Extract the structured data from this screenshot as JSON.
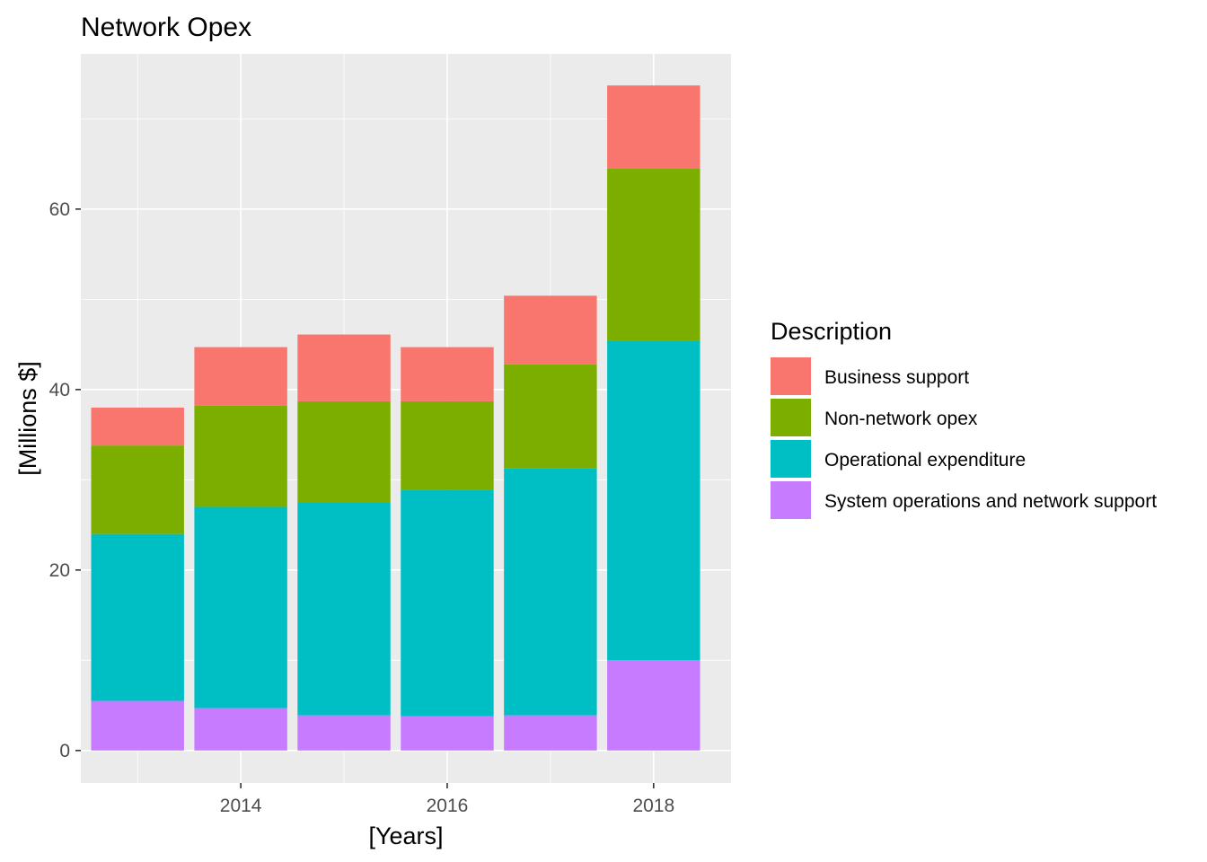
{
  "chart_data": {
    "type": "bar",
    "stacked": true,
    "title": "Network Opex",
    "xlabel": "[Years]",
    "ylabel": "[Millions $]",
    "categories": [
      2013,
      2014,
      2015,
      2016,
      2017,
      2018
    ],
    "x_ticks": [
      "2014",
      "2016",
      "2018"
    ],
    "y_ticks": [
      "0",
      "20",
      "40",
      "60"
    ],
    "xlim": [
      2012.45,
      2018.75
    ],
    "ylim": [
      -3.6,
      77.2
    ],
    "grid": true,
    "legend": {
      "title": "Description",
      "position": "right"
    },
    "series": [
      {
        "name": "System operations and network support",
        "color": "#C77CFF",
        "values": [
          5.5,
          4.7,
          3.9,
          3.8,
          3.9,
          10.0
        ]
      },
      {
        "name": "Operational expenditure",
        "color": "#00BFC4",
        "values": [
          18.5,
          22.3,
          23.6,
          25.1,
          27.4,
          35.4
        ]
      },
      {
        "name": "Non-network opex",
        "color": "#7CAE00",
        "values": [
          9.8,
          11.2,
          11.2,
          9.8,
          11.5,
          19.1
        ]
      },
      {
        "name": "Business support",
        "color": "#F8766D",
        "values": [
          4.2,
          6.5,
          7.4,
          6.0,
          7.6,
          9.2
        ]
      }
    ],
    "legend_order": [
      "Business support",
      "Non-network opex",
      "Operational expenditure",
      "System operations and network support"
    ]
  }
}
